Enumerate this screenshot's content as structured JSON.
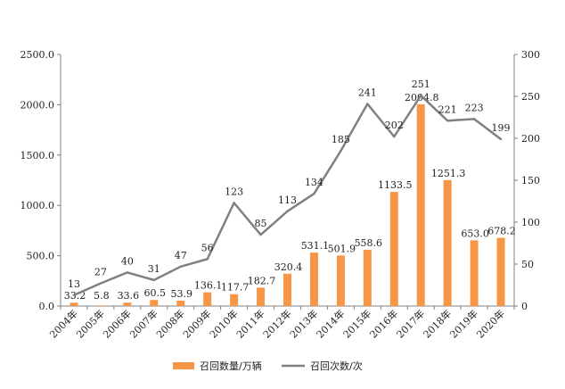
{
  "chart_data": {
    "type": "bar+line",
    "categories": [
      "2004年",
      "2005年",
      "2006年",
      "2007年",
      "2008年",
      "2009年",
      "2010年",
      "2011年",
      "2012年",
      "2013年",
      "2014年",
      "2015年",
      "2016年",
      "2017年",
      "2018年",
      "2019年",
      "2020年"
    ],
    "series": [
      {
        "name": "召回数量/万辆",
        "type": "bar",
        "axis": "left",
        "color": "#F79646",
        "values": [
          33.2,
          5.8,
          33.6,
          60.5,
          53.9,
          136.1,
          117.7,
          182.7,
          320.4,
          531.1,
          501.9,
          558.6,
          1133.5,
          2004.8,
          1251.3,
          653.0,
          678.2
        ],
        "labels": [
          "33.2",
          "5.8",
          "33.6",
          "60.5",
          "53.9",
          "136.1",
          "117.7",
          "182.7",
          "320.4",
          "531.1",
          "501.9",
          "558.6",
          "1133.5",
          "2004.8",
          "1251.3",
          "653.0",
          "678.2"
        ]
      },
      {
        "name": "召回次数/次",
        "type": "line",
        "axis": "right",
        "color": "#808080",
        "values": [
          13,
          27,
          40,
          31,
          47,
          56,
          123,
          85,
          113,
          134,
          185,
          241,
          202,
          251,
          221,
          223,
          199
        ],
        "labels": [
          "13",
          "27",
          "40",
          "31",
          "47",
          "56",
          "123",
          "85",
          "113",
          "134",
          "185",
          "241",
          "202",
          "251",
          "221",
          "223",
          "199"
        ]
      }
    ],
    "y_left": {
      "range": [
        0,
        2500
      ],
      "ticks": [
        "0.0",
        "500.0",
        "1000.0",
        "1500.0",
        "2000.0",
        "2500.0"
      ]
    },
    "y_right": {
      "range": [
        0,
        300
      ],
      "ticks": [
        "0",
        "50",
        "100",
        "150",
        "200",
        "250",
        "300"
      ]
    },
    "grid": false,
    "legend": "bottom",
    "title": "",
    "xlabel": "",
    "ylabel": ""
  }
}
